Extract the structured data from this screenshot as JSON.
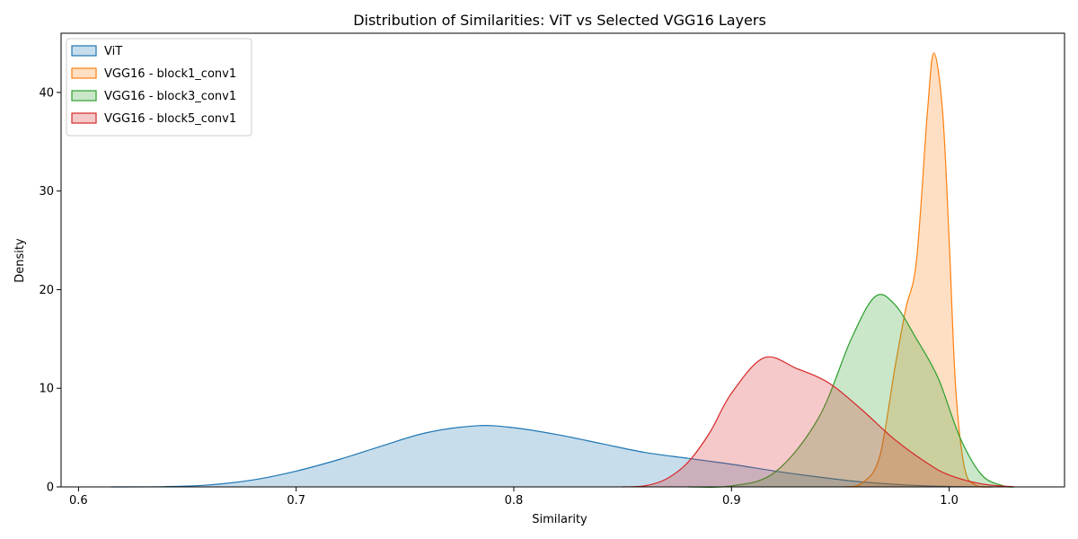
{
  "chart_data": {
    "type": "area",
    "title": "Distribution of Similarities: ViT vs Selected VGG16 Layers",
    "xlabel": "Similarity",
    "ylabel": "Density",
    "xlim": [
      0.592,
      1.053
    ],
    "ylim": [
      0,
      46
    ],
    "xticks": [
      0.6,
      0.7,
      0.8,
      0.9,
      1.0
    ],
    "xtick_labels": [
      "0.6",
      "0.7",
      "0.8",
      "0.9",
      "1.0"
    ],
    "yticks": [
      0,
      10,
      20,
      30,
      40
    ],
    "ytick_labels": [
      "0",
      "10",
      "20",
      "30",
      "40"
    ],
    "grid": false,
    "legend_position": "upper left",
    "series": [
      {
        "name": "ViT",
        "color": "#1f77b4",
        "points": [
          [
            0.615,
            0
          ],
          [
            0.64,
            0.03
          ],
          [
            0.66,
            0.2
          ],
          [
            0.68,
            0.7
          ],
          [
            0.7,
            1.6
          ],
          [
            0.72,
            2.8
          ],
          [
            0.74,
            4.2
          ],
          [
            0.76,
            5.5
          ],
          [
            0.783,
            6.2
          ],
          [
            0.8,
            6.0
          ],
          [
            0.82,
            5.3
          ],
          [
            0.84,
            4.4
          ],
          [
            0.86,
            3.5
          ],
          [
            0.88,
            2.9
          ],
          [
            0.9,
            2.3
          ],
          [
            0.92,
            1.6
          ],
          [
            0.94,
            1.0
          ],
          [
            0.96,
            0.5
          ],
          [
            0.98,
            0.2
          ],
          [
            1.0,
            0.05
          ],
          [
            1.02,
            0
          ]
        ]
      },
      {
        "name": "VGG16 - block1_conv1",
        "color": "#ff7f0e",
        "points": [
          [
            0.952,
            0
          ],
          [
            0.96,
            0.4
          ],
          [
            0.968,
            3
          ],
          [
            0.975,
            12
          ],
          [
            0.98,
            18
          ],
          [
            0.985,
            23
          ],
          [
            0.99,
            38
          ],
          [
            0.993,
            44
          ],
          [
            0.997,
            38
          ],
          [
            1.0,
            25
          ],
          [
            1.003,
            10
          ],
          [
            1.007,
            2
          ],
          [
            1.012,
            0.2
          ],
          [
            1.02,
            0
          ]
        ]
      },
      {
        "name": "VGG16 - block3_conv1",
        "color": "#2ca02c",
        "points": [
          [
            0.88,
            0
          ],
          [
            0.9,
            0.1
          ],
          [
            0.92,
            1.5
          ],
          [
            0.94,
            7
          ],
          [
            0.955,
            15
          ],
          [
            0.966,
            19.3
          ],
          [
            0.975,
            18.5
          ],
          [
            0.985,
            15
          ],
          [
            0.995,
            11
          ],
          [
            1.005,
            5
          ],
          [
            1.015,
            1.2
          ],
          [
            1.025,
            0.1
          ],
          [
            1.03,
            0
          ]
        ]
      },
      {
        "name": "VGG16 - block5_conv1",
        "color": "#d62728",
        "points": [
          [
            0.85,
            0
          ],
          [
            0.86,
            0.1
          ],
          [
            0.87,
            0.8
          ],
          [
            0.88,
            2.5
          ],
          [
            0.89,
            5.5
          ],
          [
            0.9,
            9.5
          ],
          [
            0.915,
            13.1
          ],
          [
            0.93,
            12
          ],
          [
            0.945,
            10.5
          ],
          [
            0.96,
            7.8
          ],
          [
            0.975,
            4.8
          ],
          [
            0.99,
            2.4
          ],
          [
            1.0,
            1.2
          ],
          [
            1.015,
            0.3
          ],
          [
            1.03,
            0
          ]
        ]
      }
    ]
  }
}
